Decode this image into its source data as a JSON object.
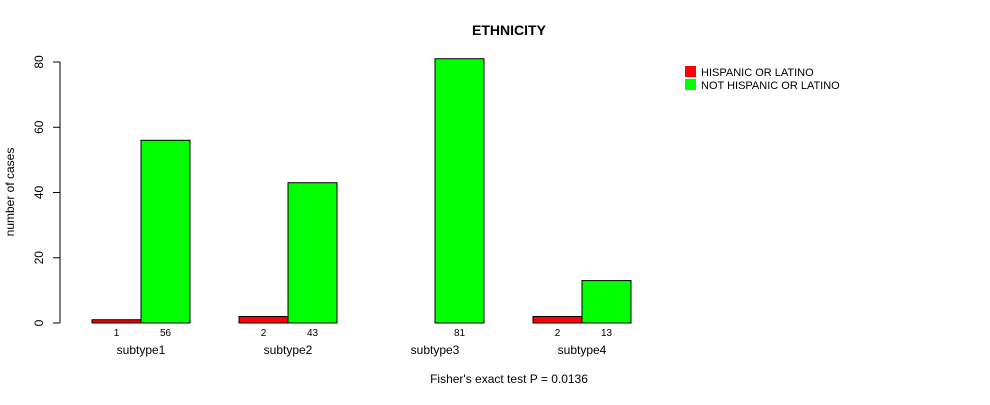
{
  "chart_data": {
    "type": "bar",
    "title": "ETHNICITY",
    "xlabel": "Fisher's exact test P = 0.0136",
    "ylabel": "number of cases",
    "ylim": [
      0,
      80
    ],
    "yticks": [
      0,
      20,
      40,
      60,
      80
    ],
    "categories": [
      "subtype1",
      "subtype2",
      "subtype3",
      "subtype4"
    ],
    "series": [
      {
        "name": "HISPANIC OR LATINO",
        "color": "#ff0000",
        "values": [
          1,
          2,
          0,
          2
        ],
        "labels": [
          "1",
          "2",
          "",
          "2"
        ]
      },
      {
        "name": "NOT HISPANIC OR LATINO",
        "color": "#00ff00",
        "values": [
          56,
          43,
          81,
          13
        ],
        "labels": [
          "56",
          "43",
          "81",
          "13"
        ]
      }
    ],
    "legend_position": "top-right",
    "grid": false
  }
}
